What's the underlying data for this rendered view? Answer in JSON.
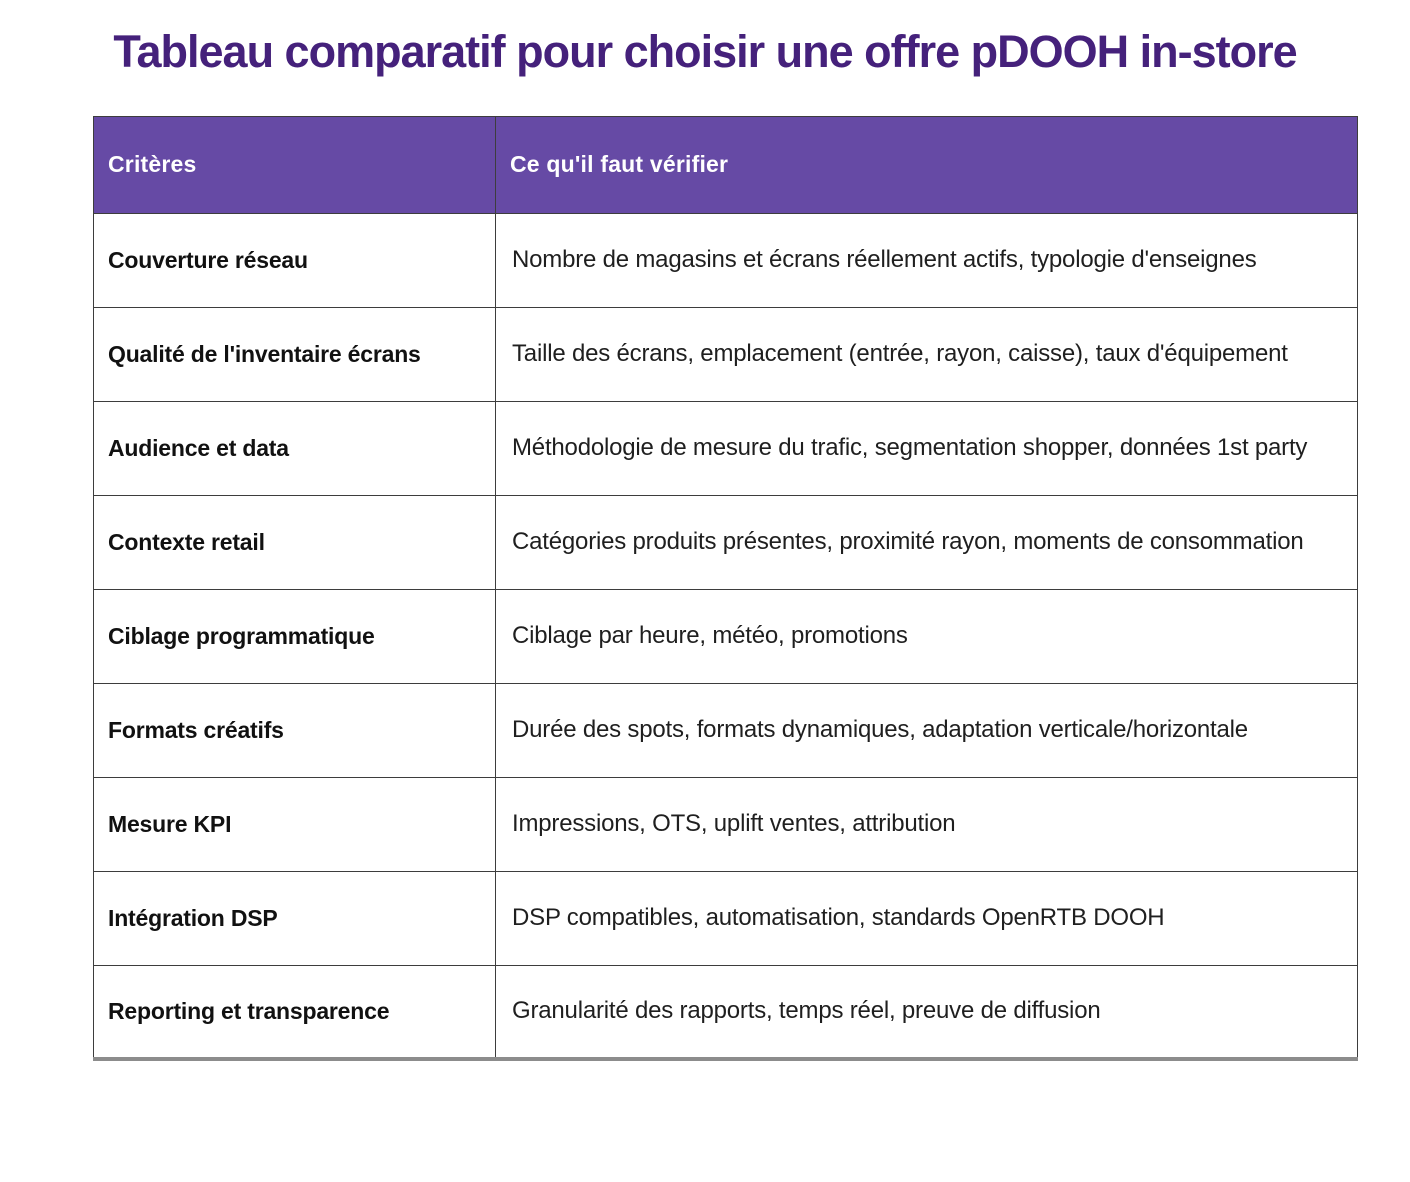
{
  "page": {
    "title": "Tableau comparatif pour choisir une offre pDOOH in-store"
  },
  "colors": {
    "title_text": "#45217b",
    "header_bg": "#664aa5",
    "header_text": "#ffffff",
    "body_text": "#1f1f1f",
    "border": "#3d3d3d"
  },
  "table": {
    "headers": {
      "col1": "Critères",
      "col2": "Ce qu'il faut vérifier"
    },
    "rows": [
      {
        "critere": "Couverture réseau",
        "verifier": "Nombre de magasins et écrans réellement actifs, typologie d'enseignes"
      },
      {
        "critere": "Qualité de l'inventaire écrans",
        "verifier": "Taille des écrans, emplacement (entrée, rayon, caisse), taux d'équipement"
      },
      {
        "critere": "Audience et data",
        "verifier": "Méthodologie de mesure du trafic, segmentation shopper, données 1st party"
      },
      {
        "critere": "Contexte retail",
        "verifier": "Catégories produits présentes, proximité rayon, moments de consommation"
      },
      {
        "critere": "Ciblage programmatique",
        "verifier": "Ciblage par heure, météo, promotions"
      },
      {
        "critere": "Formats créatifs",
        "verifier": "Durée des spots, formats dynamiques, adaptation verticale/horizontale"
      },
      {
        "critere": "Mesure KPI",
        "verifier": "Impressions, OTS, uplift ventes, attribution"
      },
      {
        "critere": "Intégration DSP",
        "verifier": "DSP compatibles, automatisation, standards OpenRTB DOOH"
      },
      {
        "critere": "Reporting et transparence",
        "verifier": "Granularité des rapports, temps réel, preuve de diffusion"
      }
    ]
  }
}
